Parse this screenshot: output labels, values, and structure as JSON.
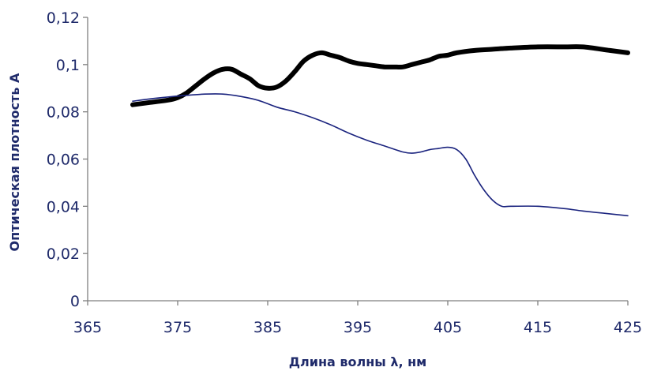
{
  "chart_data": {
    "type": "line",
    "title": "",
    "xlabel": "Длина волны λ, нм",
    "ylabel": "Оптическая плотность A",
    "xlim": [
      365,
      425
    ],
    "ylim": [
      0,
      0.12
    ],
    "x_ticks": [
      365,
      375,
      385,
      395,
      405,
      415,
      425
    ],
    "x_tick_labels": [
      "365",
      "375",
      "385",
      "395",
      "405",
      "415",
      "425"
    ],
    "y_ticks": [
      0,
      0.02,
      0.04,
      0.06,
      0.08,
      0.1,
      0.12
    ],
    "y_tick_labels": [
      "0",
      "0,02",
      "0,04",
      "0,06",
      "0,08",
      "0,1",
      "0,12"
    ],
    "grid": false,
    "legend": "none",
    "series": [
      {
        "color": "#000000",
        "style": "thick",
        "points": [
          [
            370,
            0.083
          ],
          [
            372,
            0.084
          ],
          [
            374,
            0.085
          ],
          [
            375,
            0.086
          ],
          [
            376,
            0.088
          ],
          [
            377,
            0.091
          ],
          [
            378,
            0.094
          ],
          [
            379,
            0.0965
          ],
          [
            380,
            0.098
          ],
          [
            381,
            0.098
          ],
          [
            382,
            0.096
          ],
          [
            383,
            0.094
          ],
          [
            384,
            0.091
          ],
          [
            385,
            0.09
          ],
          [
            386,
            0.0905
          ],
          [
            387,
            0.093
          ],
          [
            388,
            0.097
          ],
          [
            389,
            0.1015
          ],
          [
            390,
            0.104
          ],
          [
            391,
            0.105
          ],
          [
            392,
            0.104
          ],
          [
            393,
            0.103
          ],
          [
            394,
            0.1015
          ],
          [
            395,
            0.1005
          ],
          [
            396,
            0.1
          ],
          [
            397,
            0.0995
          ],
          [
            398,
            0.099
          ],
          [
            399,
            0.099
          ],
          [
            400,
            0.099
          ],
          [
            401,
            0.1
          ],
          [
            402,
            0.101
          ],
          [
            403,
            0.102
          ],
          [
            404,
            0.1035
          ],
          [
            405,
            0.104
          ],
          [
            406,
            0.105
          ],
          [
            408,
            0.106
          ],
          [
            410,
            0.1065
          ],
          [
            412,
            0.107
          ],
          [
            415,
            0.1075
          ],
          [
            418,
            0.1075
          ],
          [
            420,
            0.1075
          ],
          [
            423,
            0.106
          ],
          [
            425,
            0.105
          ]
        ]
      },
      {
        "color": "#1a237e",
        "style": "thin",
        "points": [
          [
            370,
            0.0845
          ],
          [
            372,
            0.0855
          ],
          [
            374,
            0.0863
          ],
          [
            376,
            0.087
          ],
          [
            378,
            0.0875
          ],
          [
            380,
            0.0875
          ],
          [
            382,
            0.0865
          ],
          [
            384,
            0.0848
          ],
          [
            386,
            0.082
          ],
          [
            388,
            0.08
          ],
          [
            390,
            0.0775
          ],
          [
            392,
            0.0745
          ],
          [
            394,
            0.071
          ],
          [
            396,
            0.068
          ],
          [
            398,
            0.0655
          ],
          [
            400,
            0.063
          ],
          [
            401,
            0.0625
          ],
          [
            402,
            0.063
          ],
          [
            403,
            0.064
          ],
          [
            404,
            0.0645
          ],
          [
            405,
            0.065
          ],
          [
            406,
            0.064
          ],
          [
            407,
            0.06
          ],
          [
            408,
            0.053
          ],
          [
            409,
            0.047
          ],
          [
            410,
            0.0425
          ],
          [
            411,
            0.04
          ],
          [
            412,
            0.04
          ],
          [
            415,
            0.04
          ],
          [
            418,
            0.039
          ],
          [
            420,
            0.038
          ],
          [
            423,
            0.0368
          ],
          [
            425,
            0.036
          ]
        ]
      }
    ]
  }
}
